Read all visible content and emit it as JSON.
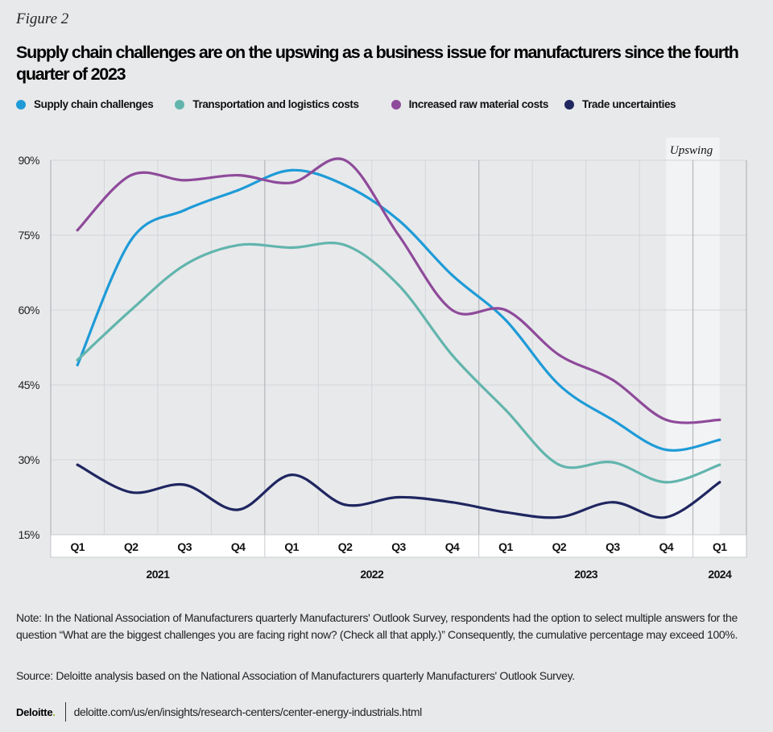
{
  "figure_label": "Figure 2",
  "chart_data": {
    "type": "line",
    "title": "Supply chain challenges are on the upswing as a business issue for manufacturers since the fourth quarter of 2023",
    "xlabel": "",
    "ylabel": "",
    "categories": [
      "Q1",
      "Q2",
      "Q3",
      "Q4",
      "Q1",
      "Q2",
      "Q3",
      "Q4",
      "Q1",
      "Q2",
      "Q3",
      "Q4",
      "Q1"
    ],
    "years": [
      {
        "label": "2021",
        "quarters": 4
      },
      {
        "label": "2022",
        "quarters": 4
      },
      {
        "label": "2023",
        "quarters": 4
      },
      {
        "label": "2024",
        "quarters": 1
      }
    ],
    "ylim": [
      15,
      90
    ],
    "yticks": [
      15,
      30,
      45,
      60,
      75,
      90
    ],
    "ytick_labels": [
      "15%",
      "30%",
      "45%",
      "60%",
      "75%",
      "90%"
    ],
    "grid": true,
    "legend_position": "top",
    "annotation": {
      "label": "Upswing",
      "from_category_index": 11.5,
      "to_category_index": 12.5
    },
    "series": [
      {
        "name": "Supply chain challenges",
        "color": "#1e9bd7",
        "values": [
          49,
          74,
          80,
          84,
          88,
          85,
          78,
          67,
          58,
          45,
          38,
          32,
          34
        ]
      },
      {
        "name": "Transportation and logistics costs",
        "color": "#62b5ad",
        "values": [
          50,
          60,
          69,
          73,
          72.5,
          73,
          65,
          51,
          40,
          29,
          29.5,
          25.5,
          29
        ]
      },
      {
        "name": "Increased raw material costs",
        "color": "#8e4a9a",
        "values": [
          76,
          87,
          86,
          87,
          85.5,
          90,
          75,
          60,
          60,
          51,
          46,
          38,
          38
        ]
      },
      {
        "name": "Trade uncertainties",
        "color": "#1f2660",
        "values": [
          29,
          23.5,
          25,
          20,
          27,
          21,
          22.5,
          21.5,
          19.5,
          18.5,
          21.5,
          18.5,
          25.5
        ]
      }
    ]
  },
  "note": "Note: In the National Association of Manufacturers quarterly Manufacturers' Outlook Survey, respondents had the option to select multiple answers for the question “What are the biggest challenges you are facing right now? (Check all that apply.)” Consequently, the cumulative percentage may exceed 100%.",
  "source": "Source: Deloitte analysis based on the National Association of Manufacturers quarterly Manufacturers' Outlook Survey.",
  "footer": {
    "logo": "Deloitte",
    "url": "deloitte.com/us/en/insights/research-centers/center-energy-industrials.html"
  }
}
